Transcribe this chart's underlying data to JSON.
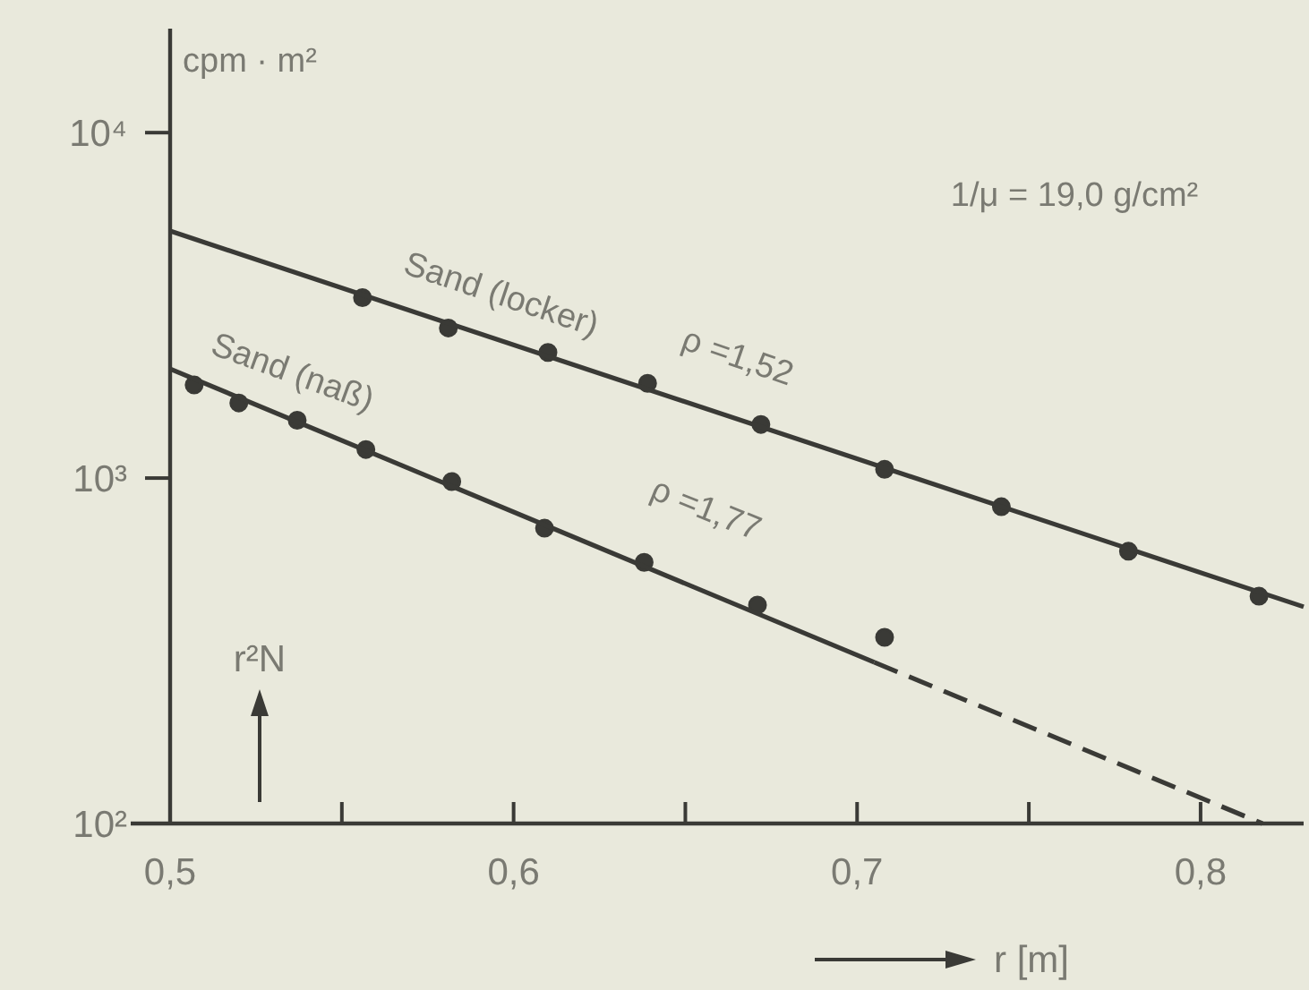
{
  "chart_data": {
    "type": "scatter",
    "xlabel": "r [m]",
    "ylabel": "r²N",
    "log": "y",
    "xlim": [
      0.5,
      0.83
    ],
    "ylim": [
      100,
      20000
    ],
    "xticks": [
      {
        "value": 0.5,
        "label": "0,5"
      },
      {
        "value": 0.55,
        "label": null
      },
      {
        "value": 0.6,
        "label": "0,6"
      },
      {
        "value": 0.65,
        "label": null
      },
      {
        "value": 0.7,
        "label": "0,7"
      },
      {
        "value": 0.75,
        "label": null
      },
      {
        "value": 0.8,
        "label": "0,8"
      }
    ],
    "yticks": [
      {
        "value": 100,
        "label": "10²"
      },
      {
        "value": 1000,
        "label": "10³"
      },
      {
        "value": 10000,
        "label": "10⁴"
      }
    ],
    "series": [
      {
        "name": "Sand (locker)",
        "marker": "circle",
        "color": "#3a3a36",
        "x": [
          0.556,
          0.581,
          0.61,
          0.639,
          0.672,
          0.708,
          0.742,
          0.779,
          0.817
        ],
        "values": [
          3330,
          2720,
          2310,
          1880,
          1430,
          1060,
          826,
          614,
          455
        ]
      },
      {
        "type": "line",
        "marker": "none",
        "line_style": "solid",
        "color": "#3a3a36",
        "x": [
          0.5,
          0.83
        ],
        "values": [
          5190,
          424
        ]
      },
      {
        "name": "Sand (naß)",
        "marker": "circle",
        "color": "#3a3a36",
        "x": [
          0.507,
          0.52,
          0.537,
          0.557,
          0.582,
          0.609,
          0.638,
          0.671,
          0.708
        ],
        "values": [
          1860,
          1650,
          1470,
          1210,
          977,
          716,
          570,
          429,
          346
        ]
      },
      {
        "type": "line",
        "marker": "none",
        "line_style": "solid",
        "color": "#3a3a36",
        "x": [
          0.5,
          0.705
        ],
        "values": [
          2070,
          293
        ]
      },
      {
        "type": "line",
        "marker": "none",
        "line_style": "dashed",
        "color": "#3a3a36",
        "x": [
          0.705,
          0.818
        ],
        "values": [
          293,
          100
        ]
      }
    ],
    "annotations": [
      "cpm · m²",
      "1/μ = 19,0 g/cm²",
      "ρ =1,52",
      "ρ =1,77"
    ]
  }
}
